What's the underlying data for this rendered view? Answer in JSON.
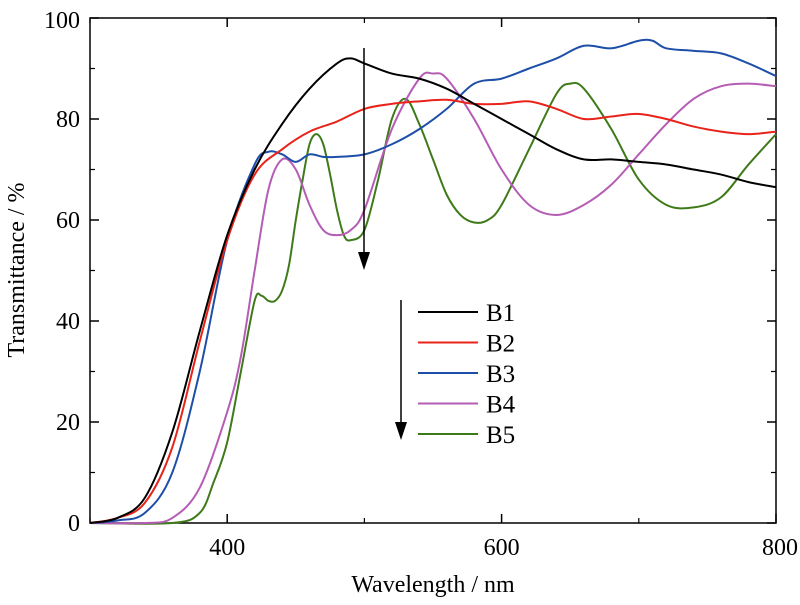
{
  "chart_data": {
    "type": "line",
    "xlabel": "Wavelength / nm",
    "ylabel": "Transmittance / %",
    "xlim": [
      300,
      800
    ],
    "ylim": [
      0,
      100
    ],
    "xticks": [
      400,
      600,
      800
    ],
    "yticks": [
      0,
      20,
      40,
      60,
      80,
      100
    ],
    "legend_placement": "center",
    "series": [
      {
        "name": "B1",
        "color": "#000000",
        "x": [
          300,
          320,
          340,
          360,
          380,
          400,
          420,
          440,
          460,
          480,
          490,
          500,
          520,
          540,
          560,
          580,
          600,
          620,
          640,
          660,
          680,
          700,
          720,
          740,
          760,
          780,
          800
        ],
        "y": [
          0,
          1,
          5,
          18,
          38,
          57,
          70,
          79,
          86,
          91,
          92,
          91,
          89,
          88,
          86,
          83,
          80,
          77,
          74,
          72,
          72,
          71.5,
          71,
          70,
          69,
          67.5,
          66.5
        ]
      },
      {
        "name": "B2",
        "color": "#e8231a",
        "x": [
          300,
          320,
          340,
          360,
          380,
          400,
          420,
          440,
          460,
          480,
          500,
          520,
          540,
          560,
          580,
          600,
          620,
          640,
          660,
          680,
          700,
          720,
          740,
          760,
          780,
          800
        ],
        "y": [
          0,
          1,
          4,
          15,
          36,
          56,
          69,
          74,
          77.5,
          79.5,
          82,
          83,
          83.5,
          83.8,
          83,
          83,
          83.5,
          82,
          80,
          80.5,
          81,
          80,
          78.5,
          77.5,
          77,
          77.5
        ]
      },
      {
        "name": "B3",
        "color": "#1e4fa8",
        "x": [
          300,
          320,
          340,
          360,
          380,
          400,
          420,
          430,
          440,
          450,
          460,
          470,
          480,
          500,
          520,
          540,
          560,
          580,
          600,
          620,
          640,
          660,
          680,
          700,
          710,
          720,
          740,
          760,
          780,
          800
        ],
        "y": [
          0,
          0.5,
          2,
          10,
          30,
          56,
          71,
          73.5,
          73,
          71.5,
          73,
          72.5,
          72.5,
          73,
          75,
          78,
          82,
          87,
          88,
          90,
          92,
          94.5,
          94,
          95.5,
          95.5,
          94,
          93.5,
          93,
          91,
          88.5
        ]
      },
      {
        "name": "B4",
        "color": "#b55cb5",
        "x": [
          300,
          340,
          360,
          380,
          400,
          410,
          420,
          430,
          440,
          450,
          460,
          470,
          480,
          490,
          500,
          520,
          540,
          550,
          560,
          580,
          600,
          620,
          640,
          660,
          680,
          700,
          720,
          740,
          760,
          780,
          800
        ],
        "y": [
          0,
          0,
          1,
          7,
          22,
          33,
          50,
          66,
          72,
          70,
          63,
          58,
          57,
          58,
          62,
          78,
          88,
          89,
          88,
          80,
          70,
          63,
          61,
          63,
          67,
          73,
          79,
          84,
          86.5,
          87,
          86.5
        ]
      },
      {
        "name": "B5",
        "color": "#3f7a1a",
        "x": [
          300,
          360,
          380,
          390,
          400,
          410,
          420,
          425,
          430,
          435,
          440,
          445,
          450,
          455,
          460,
          465,
          470,
          475,
          480,
          485,
          490,
          500,
          510,
          520,
          530,
          540,
          550,
          560,
          570,
          580,
          590,
          600,
          620,
          640,
          650,
          660,
          680,
          700,
          720,
          740,
          760,
          780,
          800
        ],
        "y": [
          0,
          0,
          2,
          8,
          16,
          30,
          44,
          45,
          44,
          44,
          46,
          51,
          60,
          68,
          75,
          77,
          75,
          69,
          62,
          57,
          56,
          58,
          68,
          80,
          84,
          79,
          72,
          65,
          61,
          59.5,
          60,
          63,
          74,
          85,
          87,
          86,
          78,
          68,
          63,
          62.5,
          64.5,
          71,
          77
        ]
      }
    ],
    "annotations": [
      {
        "type": "arrow",
        "description": "downward arrow across curves near 500 nm"
      },
      {
        "type": "arrow",
        "description": "downward arrow beside legend (B1 to B5)"
      }
    ]
  }
}
